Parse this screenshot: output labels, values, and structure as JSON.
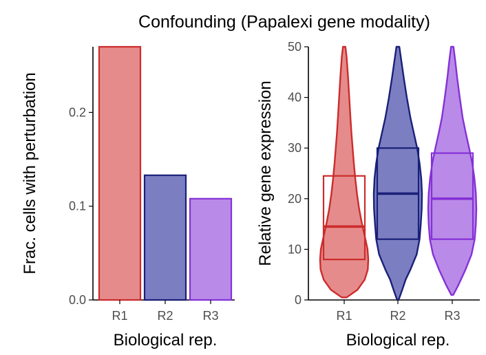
{
  "title": "Confounding (Papalexi gene modality)",
  "colors": {
    "R1": {
      "fill": "#e58b8b",
      "stroke": "#cc2b2b"
    },
    "R2": {
      "fill": "#7b7fc1",
      "stroke": "#1a1f78"
    },
    "R3": {
      "fill": "#b98ae8",
      "stroke": "#8431d6"
    }
  },
  "chart_data": [
    {
      "type": "bar",
      "categories": [
        "R1",
        "R2",
        "R3"
      ],
      "values": [
        0.27,
        0.133,
        0.108
      ],
      "xlabel": "Biological rep.",
      "ylabel": "Frac. cells with perturbation",
      "ylim": [
        0,
        0.27
      ],
      "yticks": [
        "0.0",
        "0.1",
        "0.2"
      ],
      "grid": false
    },
    {
      "type": "violin",
      "categories": [
        "R1",
        "R2",
        "R3"
      ],
      "xlabel": "Biological rep.",
      "ylabel": "Relative gene expression",
      "ylim": [
        0,
        50
      ],
      "yticks": [
        "0",
        "10",
        "20",
        "30",
        "40",
        "50"
      ],
      "grid": false,
      "series": [
        {
          "category": "R1",
          "q1": 8,
          "median": 14.5,
          "q3": 24.5,
          "min": 0.5,
          "max": 50,
          "density": [
            [
              0.5,
              0.1
            ],
            [
              2,
              0.55
            ],
            [
              4,
              0.85
            ],
            [
              6,
              0.98
            ],
            [
              8,
              1.0
            ],
            [
              10,
              0.97
            ],
            [
              12,
              0.88
            ],
            [
              15,
              0.74
            ],
            [
              18,
              0.62
            ],
            [
              21,
              0.53
            ],
            [
              24,
              0.46
            ],
            [
              27,
              0.4
            ],
            [
              30,
              0.35
            ],
            [
              33,
              0.3
            ],
            [
              36,
              0.26
            ],
            [
              40,
              0.21
            ],
            [
              44,
              0.16
            ],
            [
              48,
              0.1
            ],
            [
              50,
              0.05
            ]
          ]
        },
        {
          "category": "R2",
          "q1": 12,
          "median": 21,
          "q3": 30,
          "min": 0,
          "max": 50,
          "density": [
            [
              0,
              0.03
            ],
            [
              2,
              0.18
            ],
            [
              4,
              0.32
            ],
            [
              6,
              0.52
            ],
            [
              9,
              0.78
            ],
            [
              12,
              0.9
            ],
            [
              15,
              0.95
            ],
            [
              18,
              0.99
            ],
            [
              21,
              1.0
            ],
            [
              24,
              0.97
            ],
            [
              27,
              0.9
            ],
            [
              30,
              0.8
            ],
            [
              33,
              0.66
            ],
            [
              36,
              0.52
            ],
            [
              40,
              0.37
            ],
            [
              44,
              0.24
            ],
            [
              47,
              0.15
            ],
            [
              50,
              0.06
            ]
          ]
        },
        {
          "category": "R3",
          "q1": 12,
          "median": 20,
          "q3": 29,
          "min": 1,
          "max": 50,
          "density": [
            [
              1,
              0.04
            ],
            [
              3,
              0.26
            ],
            [
              6,
              0.55
            ],
            [
              9,
              0.8
            ],
            [
              12,
              0.93
            ],
            [
              15,
              0.98
            ],
            [
              18,
              1.0
            ],
            [
              21,
              0.98
            ],
            [
              24,
              0.92
            ],
            [
              27,
              0.83
            ],
            [
              30,
              0.7
            ],
            [
              33,
              0.56
            ],
            [
              36,
              0.43
            ],
            [
              40,
              0.31
            ],
            [
              44,
              0.2
            ],
            [
              47,
              0.13
            ],
            [
              50,
              0.05
            ]
          ]
        }
      ]
    }
  ]
}
